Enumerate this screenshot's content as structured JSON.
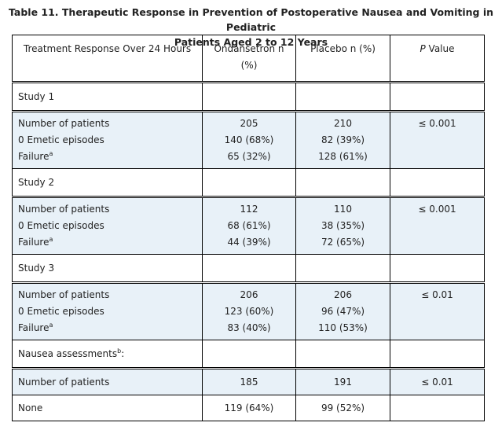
{
  "caption": {
    "line1": "Table 11. Therapeutic Response in Prevention of Postoperative Nausea and Vomiting in Pediatric",
    "line2": "Patients Aged 2 to 12 Years"
  },
  "headers": {
    "col1": "Treatment Response Over 24 Hours",
    "col2": "Ondansetron n (%)",
    "col3": "Placebo n (%)",
    "col4_italic": "P",
    "col4_rest": " Value"
  },
  "studies": [
    {
      "name": "Study 1",
      "labels": [
        "Number of patients",
        "0 Emetic episodes",
        "Failure"
      ],
      "ondansetron": [
        "205",
        "140 (68%)",
        "65 (32%)"
      ],
      "placebo": [
        "210",
        "82 (39%)",
        "128 (61%)"
      ],
      "p": "≤ 0.001"
    },
    {
      "name": "Study 2",
      "labels": [
        "Number of patients",
        "0 Emetic episodes",
        "Failure"
      ],
      "ondansetron": [
        "112",
        "68 (61%)",
        "44 (39%)"
      ],
      "placebo": [
        "110",
        "38 (35%)",
        "72 (65%)"
      ],
      "p": "≤ 0.001"
    },
    {
      "name": "Study 3",
      "labels": [
        "Number of patients",
        "0 Emetic episodes",
        "Failure"
      ],
      "ondansetron": [
        "206",
        "123 (60%)",
        "83 (40%)"
      ],
      "placebo": [
        "206",
        "96 (47%)",
        "110 (53%)"
      ],
      "p": "≤ 0.01"
    }
  ],
  "footnote_marks": {
    "failure": "a",
    "nausea": "b"
  },
  "nausea": {
    "title": "Nausea assessments",
    "title_suffix": ":",
    "rows": [
      {
        "label": "Number of patients",
        "ondansetron": "185",
        "placebo": "191",
        "p": "≤ 0.01"
      },
      {
        "label": "None",
        "ondansetron": "119 (64%)",
        "placebo": "99 (52%)",
        "p": ""
      }
    ]
  }
}
